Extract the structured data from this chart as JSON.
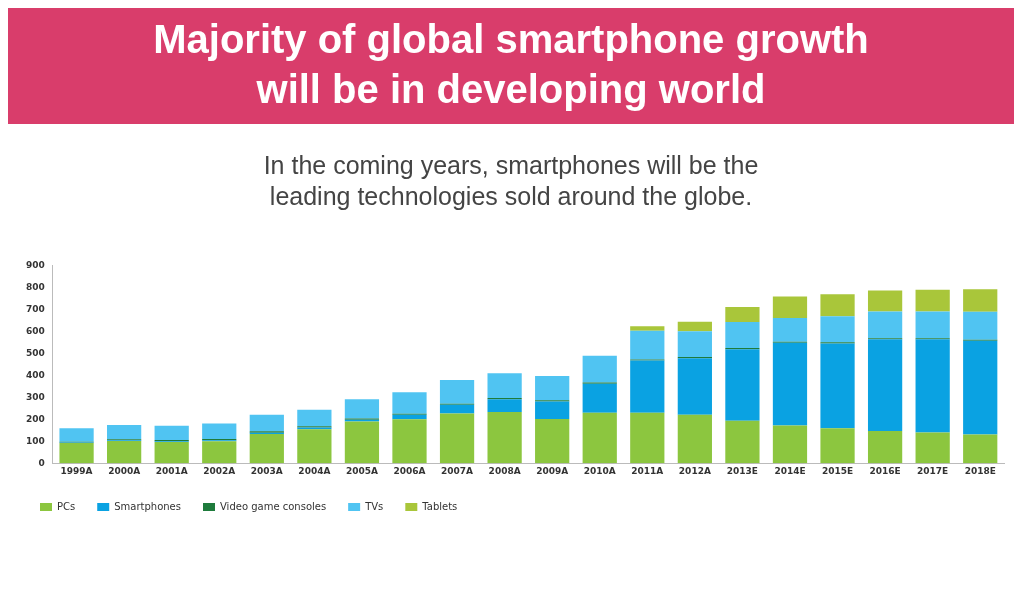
{
  "chart_data": {
    "type": "bar",
    "title": "Majority of global smartphone growth will be in developing world",
    "subtitle": "In the coming years, smartphones will be the leading technologies sold around the globe.",
    "categories": [
      "1999A",
      "2000A",
      "2001A",
      "2002A",
      "2003A",
      "2004A",
      "2005A",
      "2006A",
      "2007A",
      "2008A",
      "2009A",
      "2010A",
      "2011A",
      "2012A",
      "2013E",
      "2014E",
      "2015E",
      "2016E",
      "2017E",
      "2018E"
    ],
    "stacked": true,
    "series": [
      {
        "name": "PCs",
        "color": "#8cc63f",
        "values": [
          92,
          101,
          97,
          100,
          133,
          154,
          190,
          200,
          226,
          233,
          201,
          229,
          229,
          220,
          193,
          171,
          159,
          147,
          140,
          131
        ]
      },
      {
        "name": "Smartphones",
        "color": "#0aa2e2",
        "values": [
          2,
          3,
          3,
          4,
          6,
          8,
          8,
          20,
          40,
          58,
          80,
          133,
          238,
          258,
          326,
          377,
          386,
          417,
          424,
          426
        ]
      },
      {
        "name": "Video game consoles",
        "color": "#1e7b3c",
        "values": [
          4,
          5,
          5,
          6,
          6,
          6,
          5,
          5,
          5,
          6,
          5,
          5,
          5,
          5,
          5,
          5,
          5,
          5,
          5,
          5
        ]
      },
      {
        "name": "TVs",
        "color": "#50c4f2",
        "values": [
          61,
          65,
          65,
          71,
          75,
          75,
          88,
          98,
          108,
          112,
          111,
          122,
          131,
          117,
          119,
          108,
          119,
          121,
          121,
          127
        ]
      },
      {
        "name": "Tablets",
        "color": "#a9c63a",
        "values": [
          0,
          0,
          0,
          0,
          0,
          0,
          0,
          0,
          0,
          0,
          0,
          0,
          20,
          44,
          68,
          98,
          100,
          96,
          99,
          102
        ]
      }
    ],
    "ylim": [
      0,
      900
    ],
    "yticks": [
      0,
      100,
      200,
      300,
      400,
      500,
      600,
      700,
      800,
      900
    ],
    "grid": false,
    "legend": "bottom left"
  }
}
